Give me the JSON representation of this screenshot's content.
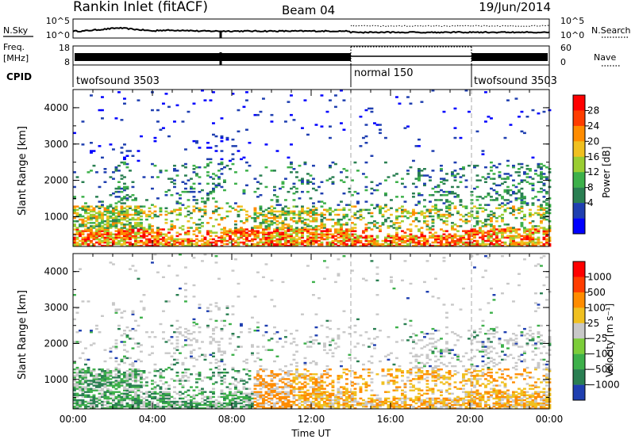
{
  "header": {
    "station": "Rankin Inlet (fitACF)",
    "beam": "Beam 04",
    "date": "19/Jun/2014"
  },
  "noise_panel": {
    "left_label": "N.Sky",
    "right_label": "N.Search",
    "left_ticks": [
      "10^5",
      "10^0"
    ],
    "right_ticks": [
      "10^5",
      "10^0"
    ]
  },
  "freq_panel": {
    "left_label_line1": "Freq.",
    "left_label_line2": "[MHz]",
    "right_label": "Nave",
    "left_ticks": [
      "18",
      "8"
    ],
    "right_ticks": [
      "60",
      "0"
    ]
  },
  "cpid_panel": {
    "label": "CPID",
    "segments": [
      {
        "name": "twofsound 3503",
        "start_hour": 0,
        "end_hour": 14
      },
      {
        "name": "normal 150",
        "start_hour": 14,
        "end_hour": 19.8
      },
      {
        "name": "twofsound 3503",
        "start_hour": 19.8,
        "end_hour": 24
      }
    ]
  },
  "chart_data": [
    {
      "type": "heatmap",
      "name": "power",
      "ylabel": "Slant Range [km]",
      "y_ticks": [
        "1000",
        "2000",
        "3000",
        "4000"
      ],
      "ylim": [
        180,
        4500
      ],
      "xlim_hours": [
        0,
        24
      ],
      "colorbar_label": "Power [dB]",
      "colorbar_ticks": [
        "4",
        "8",
        "12",
        "16",
        "20",
        "24",
        "28"
      ],
      "colors": [
        "#0000ff",
        "#1f3fb0",
        "#2a7f52",
        "#3db04a",
        "#9acd32",
        "#f0c020",
        "#ff8c00",
        "#ff3d00",
        "#ff0000"
      ]
    },
    {
      "type": "heatmap",
      "name": "velocity",
      "ylabel": "Slant Range [km]",
      "y_ticks": [
        "1000",
        "2000",
        "3000",
        "4000"
      ],
      "ylim": [
        180,
        4500
      ],
      "xlim_hours": [
        0,
        24
      ],
      "colorbar_label": "Velocity [m s⁻¹]",
      "colorbar_ticks": [
        "1000",
        "500",
        "100",
        "25",
        "−25",
        "−100",
        "−500",
        "−1000"
      ],
      "colors": [
        "#1f3fb0",
        "#2a7f52",
        "#3db04a",
        "#7ccd3a",
        "#c8c8c8",
        "#f0c020",
        "#ff8c00",
        "#ff3d00",
        "#ff0000"
      ]
    }
  ],
  "xaxis": {
    "label": "Time UT",
    "ticks": [
      "00:00",
      "04:00",
      "08:00",
      "12:00",
      "16:00",
      "20:00",
      "00:00"
    ]
  }
}
